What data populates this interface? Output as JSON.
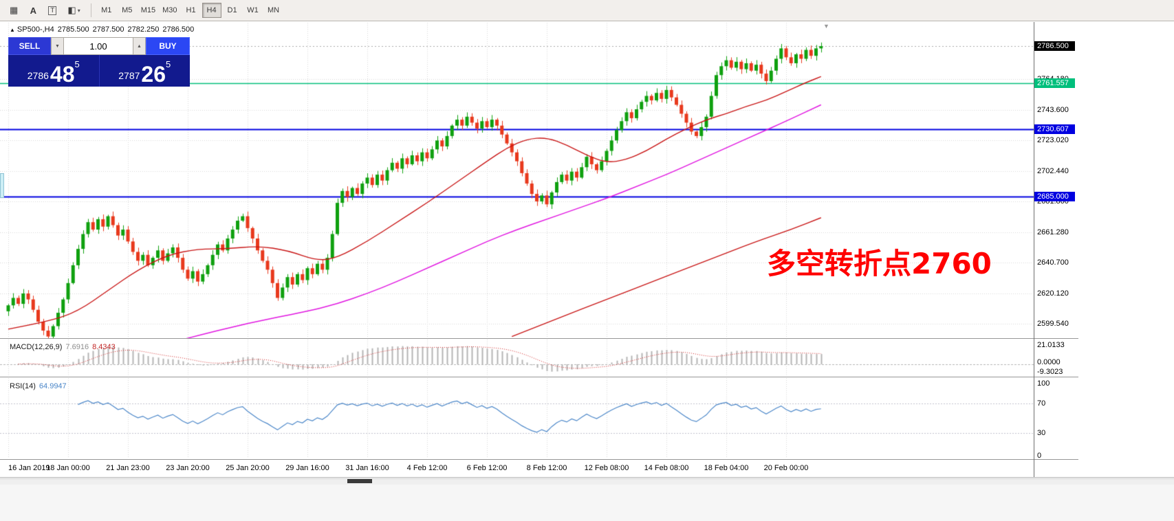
{
  "toolbar": {
    "icons": [
      {
        "name": "window-icon",
        "glyph": "▦"
      },
      {
        "name": "label-tool-icon",
        "glyph": "A"
      },
      {
        "name": "text-tool-icon",
        "glyph": "T"
      },
      {
        "name": "style-tool-icon",
        "glyph": "◧"
      }
    ],
    "style_caret": "▾",
    "timeframes": [
      "M1",
      "M5",
      "M15",
      "M30",
      "H1",
      "H4",
      "D1",
      "W1",
      "MN"
    ],
    "active_timeframe": "H4"
  },
  "chart_header": {
    "marker": "▲",
    "symbol": "SP500-,H4",
    "open": "2785.500",
    "high": "2787.500",
    "low": "2782.250",
    "close": "2786.500",
    "scroll_marker": "▼"
  },
  "trade_panel": {
    "sell_label": "SELL",
    "buy_label": "BUY",
    "volume": "1.00",
    "down_caret": "▼",
    "up_caret": "▲",
    "sell_price": {
      "stem": "2786",
      "big": "48",
      "sup": "5"
    },
    "buy_price": {
      "stem": "2787",
      "big": "26",
      "sup": "5"
    }
  },
  "annotation": {
    "text": "多空转折点2760"
  },
  "price_axis": {
    "current": "2786.500",
    "ticks": [
      "2764.180",
      "2743.600",
      "2723.020",
      "2702.440",
      "2681.860",
      "2661.280",
      "2640.700",
      "2620.120",
      "2599.540"
    ],
    "levels": [
      {
        "value": "2761.557",
        "price": 2761.557,
        "color": "#00bf7c"
      },
      {
        "value": "2730.607",
        "price": 2730.607,
        "color": "#0000e0"
      },
      {
        "value": "2685.000",
        "price": 2685.0,
        "color": "#0000e0"
      }
    ]
  },
  "macd_panel": {
    "name": "MACD(12,26,9)",
    "value_main": "7.6916",
    "value_signal": "8.4343",
    "scale": [
      "21.0133",
      "0.0000",
      "-9.3023"
    ],
    "vmax": 21.0133,
    "vmin": -9.3023
  },
  "rsi_panel": {
    "name": "RSI(14)",
    "value": "64.9947",
    "scale": [
      100,
      70,
      30,
      0
    ],
    "levels": [
      70,
      30
    ]
  },
  "time_axis": {
    "labels": [
      "16 Jan 2019",
      "18 Jan 00:00",
      "21 Jan 23:00",
      "23 Jan 20:00",
      "25 Jan 20:00",
      "29 Jan 16:00",
      "31 Jan 16:00",
      "4 Feb 12:00",
      "6 Feb 12:00",
      "8 Feb 12:00",
      "12 Feb 08:00",
      "14 Feb 08:00",
      "18 Feb 04:00",
      "20 Feb 00:00"
    ],
    "bars_per_label": 12
  },
  "chart_data": {
    "type": "candlestick",
    "symbol": "SP500",
    "timeframe": "H4",
    "ylim": {
      "top": 2802.3,
      "bottom": 2589.9
    },
    "first_open": 2608,
    "closes": [
      2612,
      2617,
      2613,
      2620,
      2616,
      2609,
      2601,
      2595,
      2591,
      2598,
      2607,
      2616,
      2627,
      2639,
      2650,
      2660,
      2668,
      2663,
      2670,
      2665,
      2672,
      2666,
      2659,
      2663,
      2655,
      2648,
      2642,
      2646,
      2639,
      2644,
      2649,
      2642,
      2647,
      2651,
      2644,
      2636,
      2630,
      2635,
      2628,
      2633,
      2639,
      2646,
      2653,
      2649,
      2657,
      2663,
      2669,
      2672,
      2664,
      2657,
      2649,
      2642,
      2636,
      2627,
      2617,
      2624,
      2631,
      2626,
      2633,
      2629,
      2637,
      2633,
      2640,
      2636,
      2644,
      2660,
      2681,
      2689,
      2685,
      2691,
      2687,
      2694,
      2698,
      2693,
      2700,
      2696,
      2703,
      2708,
      2704,
      2711,
      2707,
      2713,
      2709,
      2715,
      2711,
      2717,
      2723,
      2719,
      2726,
      2733,
      2737,
      2733,
      2739,
      2735,
      2731,
      2736,
      2732,
      2737,
      2733,
      2727,
      2721,
      2715,
      2709,
      2701,
      2694,
      2687,
      2682,
      2686,
      2680,
      2688,
      2695,
      2700,
      2696,
      2702,
      2698,
      2705,
      2712,
      2707,
      2703,
      2709,
      2716,
      2723,
      2730,
      2736,
      2742,
      2738,
      2744,
      2749,
      2753,
      2750,
      2755,
      2751,
      2757,
      2752,
      2747,
      2741,
      2735,
      2729,
      2726,
      2732,
      2739,
      2753,
      2767,
      2773,
      2777,
      2772,
      2776,
      2771,
      2775,
      2770,
      2774,
      2768,
      2763,
      2770,
      2778,
      2785,
      2779,
      2775,
      2781,
      2778,
      2784,
      2780,
      2785,
      2786.5
    ],
    "ma_fast": [
      [
        0,
        2596
      ],
      [
        8,
        2601
      ],
      [
        14,
        2608
      ],
      [
        20,
        2622
      ],
      [
        26,
        2636
      ],
      [
        32,
        2646
      ],
      [
        38,
        2650
      ],
      [
        44,
        2650
      ],
      [
        50,
        2652
      ],
      [
        56,
        2649
      ],
      [
        62,
        2642
      ],
      [
        66,
        2644
      ],
      [
        72,
        2655
      ],
      [
        78,
        2668
      ],
      [
        84,
        2681
      ],
      [
        90,
        2695
      ],
      [
        96,
        2709
      ],
      [
        100,
        2718
      ],
      [
        104,
        2724
      ],
      [
        108,
        2725
      ],
      [
        112,
        2720
      ],
      [
        116,
        2713
      ],
      [
        120,
        2708
      ],
      [
        124,
        2710
      ],
      [
        128,
        2716
      ],
      [
        132,
        2724
      ],
      [
        136,
        2731
      ],
      [
        140,
        2737
      ],
      [
        144,
        2741
      ],
      [
        148,
        2746
      ],
      [
        152,
        2750
      ],
      [
        156,
        2756
      ],
      [
        160,
        2762
      ],
      [
        163,
        2766
      ]
    ],
    "ma_slow": [
      [
        0,
        2557
      ],
      [
        12,
        2568
      ],
      [
        24,
        2579
      ],
      [
        36,
        2590
      ],
      [
        48,
        2600
      ],
      [
        60,
        2608
      ],
      [
        66,
        2613
      ],
      [
        72,
        2620
      ],
      [
        78,
        2628
      ],
      [
        84,
        2637
      ],
      [
        90,
        2646
      ],
      [
        96,
        2655
      ],
      [
        102,
        2663
      ],
      [
        108,
        2670
      ],
      [
        114,
        2677
      ],
      [
        120,
        2684
      ],
      [
        126,
        2692
      ],
      [
        132,
        2700
      ],
      [
        138,
        2709
      ],
      [
        144,
        2718
      ],
      [
        150,
        2727
      ],
      [
        156,
        2736
      ],
      [
        163,
        2747
      ]
    ],
    "ma_long": [
      [
        101,
        2591
      ],
      [
        110,
        2603
      ],
      [
        120,
        2616
      ],
      [
        130,
        2629
      ],
      [
        140,
        2642
      ],
      [
        150,
        2655
      ],
      [
        157,
        2663
      ],
      [
        163,
        2671
      ]
    ],
    "hlines": [
      2761.557,
      2730.607,
      2685.0
    ],
    "current_price": 2786.5,
    "colors": {
      "up": "#0fa00f",
      "down": "#e8391d",
      "ma_fast": "#c81414",
      "ma_slow": "#e014e0",
      "ma_long": "#c81414",
      "grid": "#d6d6d6",
      "macd_bar": "#b4b4b4",
      "macd_signal": "#d02020",
      "rsi": "#4a86c8",
      "level_green": "#00bf7c",
      "level_blue": "#0000e0",
      "annotation": "#ff0000",
      "current_badge": "#000000",
      "current_line": "#a8a8a8"
    }
  }
}
